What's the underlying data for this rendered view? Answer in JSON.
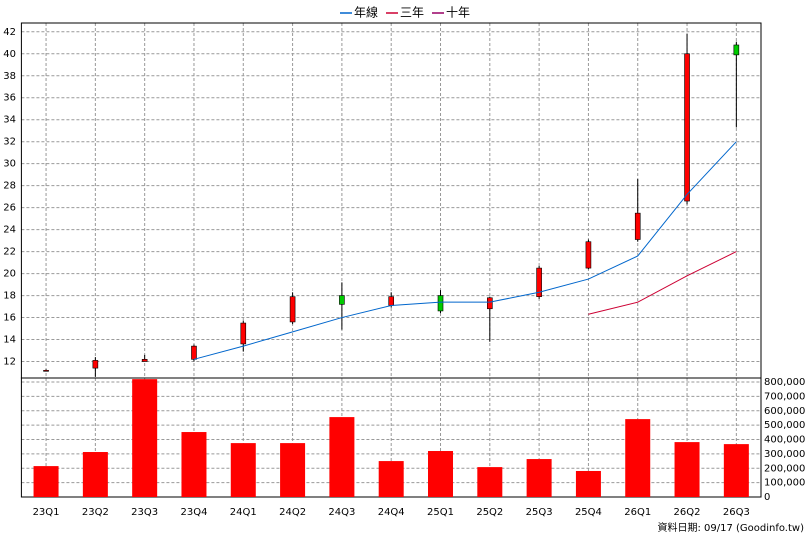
{
  "chart_data": [
    {
      "type": "candlestick",
      "categories": [
        "23Q1",
        "23Q2",
        "23Q3",
        "23Q4",
        "24Q1",
        "24Q2",
        "24Q3",
        "24Q4",
        "25Q1",
        "25Q2",
        "25Q3",
        "25Q4",
        "26Q1",
        "26Q2",
        "26Q3"
      ],
      "open": [
        11.2,
        11.4,
        12.0,
        12.2,
        13.6,
        15.6,
        18.0,
        17.1,
        18.0,
        16.8,
        17.9,
        20.5,
        23.1,
        26.6,
        40.8
      ],
      "high": [
        11.3,
        12.4,
        12.6,
        13.55,
        15.7,
        18.3,
        19.2,
        18.3,
        18.5,
        17.9,
        20.7,
        23.1,
        28.6,
        41.8,
        41.1
      ],
      "low": [
        11.1,
        10.6,
        12.0,
        12.0,
        12.9,
        15.4,
        14.9,
        16.9,
        16.4,
        13.8,
        17.7,
        20.4,
        22.9,
        26.3,
        33.3
      ],
      "close": [
        11.2,
        12.1,
        12.2,
        13.4,
        15.5,
        17.9,
        17.2,
        17.9,
        16.6,
        17.8,
        20.5,
        22.9,
        25.5,
        40.0,
        39.9
      ],
      "up_color": "#ff0000",
      "down_color": "#00cc00",
      "series": [
        {
          "name": "年線",
          "color": "#0066cc",
          "values": [
            null,
            null,
            null,
            12.2,
            13.4,
            14.7,
            16.0,
            17.1,
            17.4,
            17.4,
            18.3,
            19.5,
            21.6,
            27.2,
            32.0
          ]
        },
        {
          "name": "三年",
          "color": "#cc0033",
          "values": [
            null,
            null,
            null,
            null,
            null,
            null,
            null,
            null,
            null,
            null,
            null,
            16.3,
            17.4,
            19.8,
            22.0
          ]
        },
        {
          "name": "十年",
          "color": "#990066",
          "values": [
            null,
            null,
            null,
            null,
            null,
            null,
            null,
            null,
            null,
            null,
            null,
            null,
            null,
            null,
            null
          ]
        }
      ],
      "ylim": [
        10.5,
        42.8
      ],
      "yticks": [
        12,
        14,
        16,
        18,
        20,
        22,
        24,
        26,
        28,
        30,
        32,
        34,
        36,
        38,
        40,
        42
      ],
      "grid": true,
      "legend": "top"
    },
    {
      "type": "bar",
      "values": [
        215000,
        313000,
        820000,
        452000,
        375000,
        375000,
        556000,
        250000,
        320000,
        208000,
        264000,
        181000,
        542000,
        382000,
        368000
      ],
      "color": "#ff0000",
      "ylim": [
        0,
        828000
      ],
      "yticks": [
        0,
        {
          "value": 100000,
          "label": "100,000"
        },
        {
          "value": 200000,
          "label": "200,000"
        },
        {
          "value": 300000,
          "label": "300,000"
        },
        {
          "value": 400000,
          "label": "400,000"
        },
        {
          "value": 500000,
          "label": "500,000"
        },
        {
          "value": 600000,
          "label": "600,000"
        },
        {
          "value": 700000,
          "label": "700,000"
        },
        {
          "value": 800000,
          "label": "800,000"
        }
      ],
      "grid": true
    }
  ],
  "footer": "資料日期: 09/17 (Goodinfo.tw)"
}
